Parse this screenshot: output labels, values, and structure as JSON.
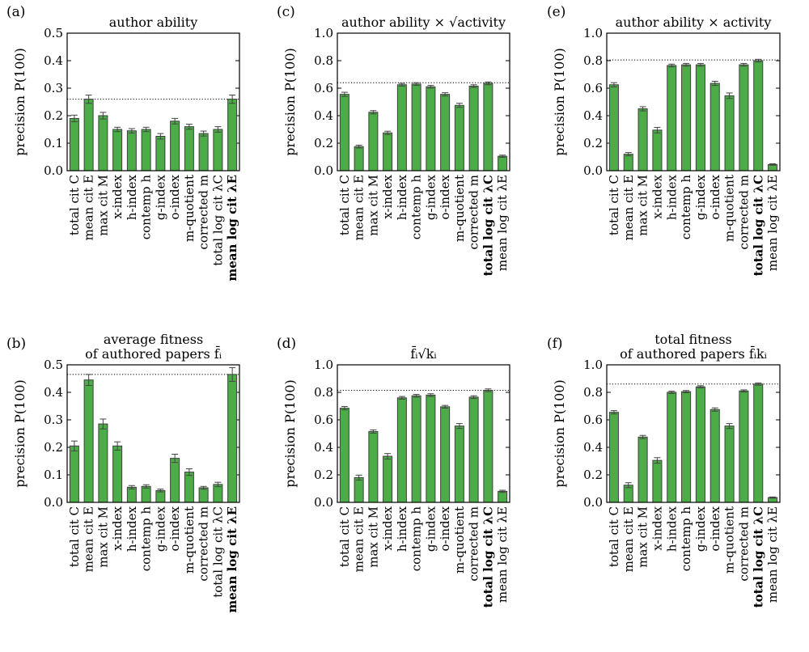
{
  "chart_data": [
    {
      "type": "bar",
      "panel": "(a)",
      "title": [
        "author ability"
      ],
      "ylabel": "precision P(100)",
      "ylim": [
        0,
        0.5
      ],
      "yticks": [
        "0.0",
        "0.1",
        "0.2",
        "0.3",
        "0.4",
        "0.5"
      ],
      "categories": [
        "total cit C",
        "mean cit E",
        "max cit M",
        "x-index",
        "h-index",
        "contemp h",
        "g-index",
        "o-index",
        "m-quotient",
        "corrected m",
        "total log cit λC",
        "mean log cit λE"
      ],
      "highlight": [
        11
      ],
      "values": [
        0.19,
        0.26,
        0.2,
        0.15,
        0.145,
        0.15,
        0.125,
        0.18,
        0.16,
        0.135,
        0.15,
        0.26
      ],
      "errors": [
        0.012,
        0.015,
        0.012,
        0.008,
        0.008,
        0.008,
        0.01,
        0.01,
        0.009,
        0.009,
        0.01,
        0.015
      ],
      "reference_line": 0.26,
      "color": "#4cac47"
    },
    {
      "type": "bar",
      "panel": "(b)",
      "title": [
        "average fitness",
        "of authored papers f̄ᵢ"
      ],
      "ylabel": "precision P(100)",
      "ylim": [
        0,
        0.5
      ],
      "yticks": [
        "0.0",
        "0.1",
        "0.2",
        "0.3",
        "0.4",
        "0.5"
      ],
      "categories": [
        "total cit C",
        "mean cit E",
        "max cit M",
        "x-index",
        "h-index",
        "contemp h",
        "g-index",
        "o-index",
        "m-quotient",
        "corrected m",
        "total log cit λC",
        "mean log cit λE"
      ],
      "highlight": [
        11
      ],
      "values": [
        0.205,
        0.445,
        0.285,
        0.205,
        0.055,
        0.058,
        0.043,
        0.16,
        0.11,
        0.053,
        0.065,
        0.465
      ],
      "errors": [
        0.018,
        0.02,
        0.018,
        0.015,
        0.006,
        0.006,
        0.005,
        0.015,
        0.012,
        0.005,
        0.008,
        0.025
      ],
      "reference_line": 0.465,
      "color": "#4cac47"
    },
    {
      "type": "bar",
      "panel": "(c)",
      "title": [
        "author ability × √activity"
      ],
      "ylabel": "precision P(100)",
      "ylim": [
        0,
        1.0
      ],
      "yticks": [
        "0.0",
        "0.2",
        "0.4",
        "0.6",
        "0.8",
        "1.0"
      ],
      "categories": [
        "total cit C",
        "mean cit E",
        "max cit M",
        "x-index",
        "h-index",
        "contemp h",
        "g-index",
        "o-index",
        "m-quotient",
        "corrected m",
        "total log cit λC",
        "mean log cit λE"
      ],
      "highlight": [
        10
      ],
      "values": [
        0.555,
        0.175,
        0.425,
        0.275,
        0.625,
        0.63,
        0.61,
        0.555,
        0.475,
        0.615,
        0.635,
        0.105
      ],
      "errors": [
        0.015,
        0.01,
        0.012,
        0.012,
        0.01,
        0.01,
        0.01,
        0.012,
        0.015,
        0.01,
        0.01,
        0.008
      ],
      "reference_line": 0.64,
      "color": "#4cac47"
    },
    {
      "type": "bar",
      "panel": "(d)",
      "title": [
        "f̄ᵢ√kᵢ"
      ],
      "ylabel": "precision P(100)",
      "ylim": [
        0,
        1.0
      ],
      "yticks": [
        "0.0",
        "0.2",
        "0.4",
        "0.6",
        "0.8",
        "1.0"
      ],
      "categories": [
        "total cit C",
        "mean cit E",
        "max cit M",
        "x-index",
        "h-index",
        "contemp h",
        "g-index",
        "o-index",
        "m-quotient",
        "corrected m",
        "total log cit λC",
        "mean log cit λE"
      ],
      "highlight": [
        10
      ],
      "values": [
        0.685,
        0.18,
        0.515,
        0.335,
        0.76,
        0.775,
        0.78,
        0.695,
        0.555,
        0.765,
        0.815,
        0.08
      ],
      "errors": [
        0.012,
        0.018,
        0.012,
        0.02,
        0.01,
        0.01,
        0.01,
        0.01,
        0.018,
        0.01,
        0.01,
        0.008
      ],
      "reference_line": 0.815,
      "color": "#4cac47"
    },
    {
      "type": "bar",
      "panel": "(e)",
      "title": [
        "author ability × activity"
      ],
      "ylabel": "precision P(100)",
      "ylim": [
        0,
        1.0
      ],
      "yticks": [
        "0.0",
        "0.2",
        "0.4",
        "0.6",
        "0.8",
        "1.0"
      ],
      "categories": [
        "total cit C",
        "mean cit E",
        "max cit M",
        "x-index",
        "h-index",
        "contemp h",
        "g-index",
        "o-index",
        "m-quotient",
        "corrected m",
        "total log cit λC",
        "mean log cit λE"
      ],
      "highlight": [
        10
      ],
      "values": [
        0.625,
        0.12,
        0.45,
        0.295,
        0.765,
        0.77,
        0.77,
        0.635,
        0.545,
        0.77,
        0.8,
        0.045
      ],
      "errors": [
        0.015,
        0.012,
        0.015,
        0.02,
        0.01,
        0.01,
        0.01,
        0.015,
        0.02,
        0.01,
        0.01,
        0.005
      ],
      "reference_line": 0.805,
      "color": "#4cac47"
    },
    {
      "type": "bar",
      "panel": "(f)",
      "title": [
        "total fitness",
        "of authored papers f̄ᵢkᵢ"
      ],
      "ylabel": "precision P(100)",
      "ylim": [
        0,
        1.0
      ],
      "yticks": [
        "0.0",
        "0.2",
        "0.4",
        "0.6",
        "0.8",
        "1.0"
      ],
      "categories": [
        "total cit C",
        "mean cit E",
        "max cit M",
        "x-index",
        "h-index",
        "contemp h",
        "g-index",
        "o-index",
        "m-quotient",
        "corrected m",
        "total log cit λC",
        "mean log cit λE"
      ],
      "highlight": [
        10
      ],
      "values": [
        0.655,
        0.125,
        0.475,
        0.305,
        0.8,
        0.805,
        0.84,
        0.675,
        0.555,
        0.81,
        0.86,
        0.035
      ],
      "errors": [
        0.012,
        0.018,
        0.012,
        0.02,
        0.008,
        0.008,
        0.008,
        0.012,
        0.018,
        0.008,
        0.008,
        0.004
      ],
      "reference_line": 0.86,
      "color": "#4cac47"
    }
  ]
}
